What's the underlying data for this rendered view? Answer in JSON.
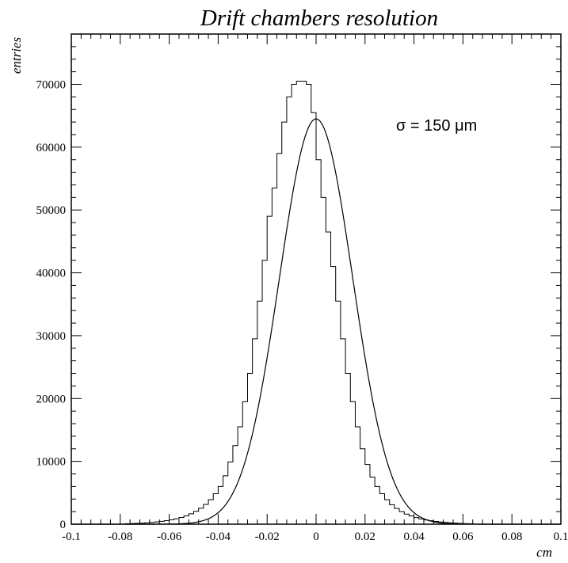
{
  "chart_data": {
    "type": "histogram",
    "title": "Drift chambers resolution",
    "xlabel": "cm",
    "ylabel": "entries",
    "xlim": [
      -0.1,
      0.1
    ],
    "ylim": [
      0,
      78000
    ],
    "x_ticks": [
      -0.1,
      -0.08,
      -0.06,
      -0.04,
      -0.02,
      0,
      0.02,
      0.04,
      0.06,
      0.08,
      0.1
    ],
    "x_tick_labels": [
      "-0.1",
      "-0.08",
      "-0.06",
      "-0.04",
      "-0.02",
      "0",
      "0.02",
      "0.04",
      "0.06",
      "0.08",
      "0.1"
    ],
    "y_ticks": [
      0,
      10000,
      20000,
      30000,
      40000,
      50000,
      60000,
      70000
    ],
    "y_tick_labels": [
      "0",
      "10000",
      "20000",
      "30000",
      "40000",
      "50000",
      "60000",
      "70000"
    ],
    "annotation": "σ = 150 μm",
    "grid": false,
    "histogram": {
      "bin_width": 0.002,
      "bin_edges": [
        -0.1,
        0.1
      ],
      "counts": [
        0,
        0,
        0,
        0,
        0,
        0,
        0,
        0,
        0,
        0,
        0,
        80,
        110,
        140,
        180,
        230,
        290,
        360,
        450,
        560,
        690,
        860,
        1070,
        1330,
        1650,
        2050,
        2550,
        3150,
        3900,
        4850,
        6000,
        7700,
        9900,
        12500,
        15500,
        19500,
        24000,
        29500,
        35500,
        42000,
        49000,
        53500,
        59000,
        64000,
        68000,
        70000,
        70500,
        70500,
        70000,
        65500,
        58000,
        52000,
        46500,
        41000,
        35500,
        29500,
        24000,
        19500,
        15500,
        12000,
        9500,
        7500,
        6000,
        4850,
        3900,
        3100,
        2500,
        2000,
        1600,
        1300,
        1050,
        840,
        680,
        550,
        440,
        350,
        280,
        220,
        170,
        130,
        100,
        75,
        0,
        0,
        0,
        0,
        0,
        0,
        0,
        0,
        0,
        0,
        0,
        0,
        0,
        0,
        0,
        0,
        0,
        0
      ]
    },
    "fit": {
      "function": "gaussian",
      "amplitude": 64500,
      "mean": 0,
      "sigma": 0.015
    }
  }
}
